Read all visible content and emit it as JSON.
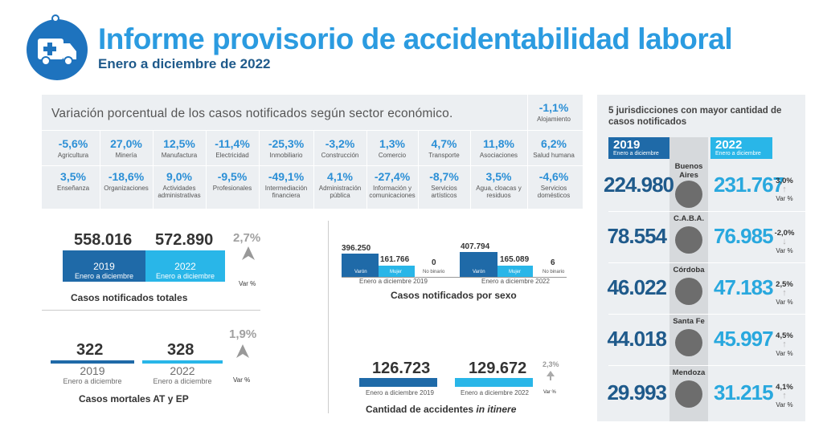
{
  "header": {
    "title": "Informe provisorio de accidentabilidad laboral",
    "subtitle": "Enero a diciembre de 2022",
    "logo_icon": "ambulance-icon"
  },
  "sectors": {
    "title": "Variación porcentual de los casos notificados según sector económico.",
    "row1": [
      {
        "pct": "-5,6%",
        "label": "Agricultura"
      },
      {
        "pct": "27,0%",
        "label": "Minería"
      },
      {
        "pct": "12,5%",
        "label": "Manufactura"
      },
      {
        "pct": "-11,4%",
        "label": "Electricidad"
      },
      {
        "pct": "-25,3%",
        "label": "Inmobiliario"
      },
      {
        "pct": "-3,2%",
        "label": "Construcción"
      },
      {
        "pct": "1,3%",
        "label": "Comercio"
      },
      {
        "pct": "4,7%",
        "label": "Transporte"
      },
      {
        "pct": "11,8%",
        "label": "Asociaciones"
      },
      {
        "pct": "6,2%",
        "label": "Salud humana"
      }
    ],
    "row2": [
      {
        "pct": "3,5%",
        "label": "Enseñanza"
      },
      {
        "pct": "-18,6%",
        "label": "Organizaciones"
      },
      {
        "pct": "9,0%",
        "label": "Actividades administrativas"
      },
      {
        "pct": "-9,5%",
        "label": "Profesionales"
      },
      {
        "pct": "-49,1%",
        "label": "Intermediación financiera"
      },
      {
        "pct": "4,1%",
        "label": "Administración pública"
      },
      {
        "pct": "-27,4%",
        "label": "Información y comunicaciones"
      },
      {
        "pct": "-8,7%",
        "label": "Servicios artísticos"
      },
      {
        "pct": "3,5%",
        "label": "Agua, cloacas y residuos"
      },
      {
        "pct": "-4,6%",
        "label": "Servicios domésticos"
      }
    ],
    "top": {
      "pct": "-1,1%",
      "label": "Alojamiento"
    }
  },
  "totals": {
    "v2019": "558.016",
    "v2022": "572.890",
    "y2019": "2019",
    "y2022": "2022",
    "period": "Enero a diciembre",
    "var": "2,7%",
    "var_label": "Var %",
    "caption": "Casos notificados totales"
  },
  "fatal": {
    "v2019": "322",
    "v2022": "328",
    "y2019": "2019",
    "y2022": "2022",
    "period": "Enero a diciembre",
    "var": "1,9%",
    "var_label": "Var %",
    "caption": "Casos mortales AT y EP"
  },
  "sex": {
    "caption": "Casos notificados por sexo",
    "p2019": "Enero a diciembre 2019",
    "p2022": "Enero a diciembre 2022",
    "varon": "Varón",
    "mujer": "Mujer",
    "nobin": "No binario",
    "v2019": {
      "varon": "396.250",
      "mujer": "161.766",
      "nobin": "0"
    },
    "v2022": {
      "varon": "407.794",
      "mujer": "165.089",
      "nobin": "6"
    }
  },
  "itinere": {
    "v2019": "126.723",
    "v2022": "129.672",
    "p2019": "Enero a diciembre 2019",
    "p2022": "Enero a diciembre 2022",
    "var": "2,3%",
    "var_label": "Var %",
    "caption_a": "Cantidad de accidentes",
    "caption_b": "in itinere"
  },
  "jurisdictions": {
    "title": "5 jurisdicciones con mayor cantidad de casos notificados",
    "h2019": "2019",
    "h2022": "2022",
    "hsub": "Enero a diciembre",
    "var_label": "Var %",
    "rows": [
      {
        "name": "Buenos Aires",
        "v2019": "224.980",
        "v2022": "231.767",
        "var": "3,0%",
        "arrow": "↑"
      },
      {
        "name": "C.A.B.A.",
        "v2019": "78.554",
        "v2022": "76.985",
        "var": "-2,0%",
        "arrow": "↓"
      },
      {
        "name": "Córdoba",
        "v2019": "46.022",
        "v2022": "47.183",
        "var": "2,5%",
        "arrow": "↑"
      },
      {
        "name": "Santa Fe",
        "v2019": "44.018",
        "v2022": "45.997",
        "var": "4,5%",
        "arrow": "↑"
      },
      {
        "name": "Mendoza",
        "v2019": "29.993",
        "v2022": "31.215",
        "var": "4,1%",
        "arrow": "↑"
      }
    ]
  }
}
